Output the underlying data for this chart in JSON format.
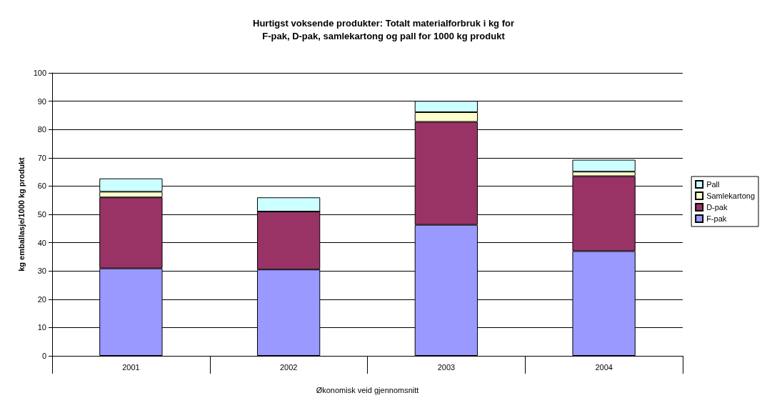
{
  "chart_data": {
    "type": "bar",
    "title": "Hurtigst voksende produkter: Totalt materialforbruk i kg for\nF-pak, D-pak, samlekartong og pall for 1000 kg produkt",
    "xlabel": "Økonomisk veid gjennomsnitt",
    "ylabel": "kg emballasje/1000 kg produkt",
    "categories": [
      "2001",
      "2002",
      "2003",
      "2004"
    ],
    "stacked": true,
    "series": [
      {
        "name": "F-pak",
        "color": "#9999ff",
        "values": [
          30.9,
          30.5,
          46.3,
          37.0
        ]
      },
      {
        "name": "D-pak",
        "color": "#993366",
        "values": [
          25.1,
          20.5,
          36.4,
          26.5
        ]
      },
      {
        "name": "Samlekartong",
        "color": "#ffffcc",
        "values": [
          2.0,
          0,
          3.4,
          1.6
        ]
      },
      {
        "name": "Pall",
        "color": "#ccffff",
        "values": [
          4.7,
          5.0,
          4.0,
          4.2
        ]
      }
    ],
    "ylim": [
      0,
      100
    ],
    "yticks": [
      0,
      10,
      20,
      30,
      40,
      50,
      60,
      70,
      80,
      90,
      100
    ],
    "grid": "y",
    "legend": "right"
  }
}
